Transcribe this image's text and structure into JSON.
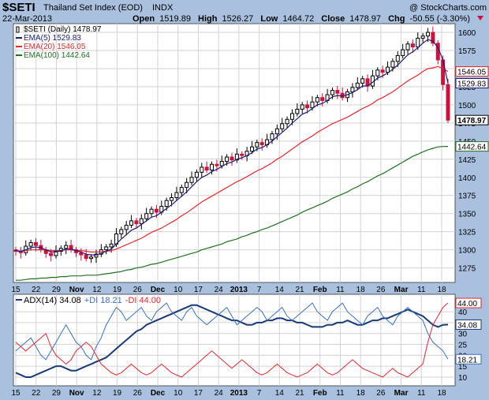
{
  "header": {
    "symbol": "$SETI",
    "name": "Thailand Set Index (EOD)",
    "exchange": "INDX",
    "watermark": "@ StockCharts.com",
    "date": "22-Mar-2013",
    "open_label": "Open",
    "open": "1519.89",
    "high_label": "High",
    "high": "1526.27",
    "low_label": "Low",
    "low": "1464.72",
    "close_label": "Close",
    "close": "1478.97",
    "chg_label": "Chg",
    "chg": "-50.55 (-3.30%)"
  },
  "colors": {
    "background": "#a9c0de",
    "plot_bg": "#ffffff",
    "grid": "#d3d3d3",
    "up": "#000000",
    "down": "#d0103a",
    "ema5": "#1c1c7a",
    "ema20": "#e8262c",
    "ema100": "#237023",
    "adx": "#1a3a78",
    "plus_di": "#3b6fc4",
    "minus_di": "#e8262c"
  },
  "chart_data": [
    {
      "type": "candlestick",
      "title": "$SETI Thailand Set Index (EOD) INDX",
      "legend": [
        {
          "key": "price",
          "text": "$SETI (Daily) 1478.97"
        },
        {
          "key": "ema5",
          "text": "EMA(5) 1529.83"
        },
        {
          "key": "ema20",
          "text": "EMA(20) 1546.05"
        },
        {
          "key": "ema100",
          "text": "EMA(100) 1442.64"
        }
      ],
      "legend_position": "top-left",
      "y_ticks": [
        1275,
        1300,
        1325,
        1350,
        1375,
        1400,
        1425,
        1450,
        1475,
        1500,
        1525,
        1550,
        1575,
        1600
      ],
      "y_range": [
        1255,
        1612
      ],
      "x_ticks": [
        "15",
        "22",
        "29",
        "Nov",
        "12",
        "19",
        "26",
        "Dec",
        "10",
        "17",
        "24",
        "2013",
        "7",
        "14",
        "21",
        "Feb",
        "11",
        "18",
        "26",
        "Mar",
        "11",
        "18"
      ],
      "series_points": {
        "close": [
          1298,
          1296,
          1305,
          1310,
          1306,
          1300,
          1295,
          1292,
          1298,
          1302,
          1306,
          1300,
          1296,
          1293,
          1288,
          1290,
          1294,
          1300,
          1304,
          1308,
          1322,
          1328,
          1334,
          1340,
          1336,
          1343,
          1350,
          1356,
          1352,
          1360,
          1368,
          1372,
          1379,
          1386,
          1393,
          1400,
          1407,
          1414,
          1410,
          1418,
          1416,
          1422,
          1428,
          1424,
          1432,
          1430,
          1436,
          1442,
          1448,
          1445,
          1452,
          1460,
          1467,
          1474,
          1480,
          1488,
          1494,
          1500,
          1496,
          1504,
          1510,
          1506,
          1514,
          1520,
          1516,
          1510,
          1518,
          1524,
          1530,
          1536,
          1526,
          1540,
          1548,
          1545,
          1552,
          1560,
          1568,
          1576,
          1584,
          1580,
          1592,
          1595,
          1600,
          1585,
          1562,
          1528,
          1478.97
        ],
        "ema5": [
          1299,
          1298,
          1300,
          1303,
          1304,
          1303,
          1300,
          1297,
          1297,
          1299,
          1301,
          1301,
          1299,
          1297,
          1294,
          1293,
          1293,
          1295,
          1298,
          1301,
          1308,
          1315,
          1321,
          1327,
          1330,
          1335,
          1340,
          1345,
          1347,
          1352,
          1357,
          1362,
          1368,
          1374,
          1380,
          1387,
          1394,
          1400,
          1403,
          1408,
          1411,
          1415,
          1419,
          1421,
          1425,
          1427,
          1430,
          1434,
          1439,
          1441,
          1445,
          1450,
          1456,
          1462,
          1468,
          1475,
          1481,
          1487,
          1490,
          1495,
          1500,
          1502,
          1506,
          1511,
          1513,
          1512,
          1514,
          1517,
          1521,
          1526,
          1526,
          1531,
          1537,
          1540,
          1544,
          1549,
          1555,
          1562,
          1569,
          1573,
          1579,
          1585,
          1590,
          1588,
          1579,
          1562,
          1529.83
        ],
        "ema20": [
          1298,
          1298,
          1299,
          1300,
          1300,
          1300,
          1300,
          1299,
          1299,
          1299,
          1300,
          1300,
          1299,
          1299,
          1298,
          1297,
          1297,
          1297,
          1298,
          1299,
          1301,
          1304,
          1307,
          1310,
          1313,
          1316,
          1320,
          1324,
          1327,
          1330,
          1334,
          1338,
          1342,
          1347,
          1351,
          1356,
          1361,
          1366,
          1370,
          1374,
          1378,
          1382,
          1386,
          1390,
          1394,
          1397,
          1401,
          1405,
          1409,
          1412,
          1416,
          1420,
          1425,
          1429,
          1434,
          1439,
          1444,
          1449,
          1453,
          1457,
          1462,
          1466,
          1470,
          1474,
          1477,
          1480,
          1483,
          1487,
          1491,
          1495,
          1498,
          1502,
          1507,
          1510,
          1514,
          1518,
          1523,
          1528,
          1533,
          1537,
          1541,
          1546,
          1550,
          1551,
          1553,
          1550,
          1546.05
        ],
        "ema100": [
          1258,
          1258,
          1259,
          1260,
          1260,
          1261,
          1261,
          1262,
          1262,
          1263,
          1263,
          1264,
          1264,
          1264,
          1265,
          1265,
          1265,
          1266,
          1267,
          1268,
          1269,
          1270,
          1272,
          1273,
          1275,
          1276,
          1278,
          1280,
          1281,
          1283,
          1285,
          1287,
          1289,
          1291,
          1293,
          1295,
          1297,
          1300,
          1302,
          1304,
          1306,
          1308,
          1311,
          1313,
          1315,
          1318,
          1320,
          1323,
          1325,
          1328,
          1330,
          1333,
          1336,
          1339,
          1342,
          1345,
          1348,
          1352,
          1355,
          1358,
          1361,
          1364,
          1367,
          1371,
          1374,
          1377,
          1380,
          1384,
          1387,
          1391,
          1394,
          1398,
          1402,
          1405,
          1409,
          1413,
          1417,
          1421,
          1425,
          1429,
          1432,
          1435,
          1438,
          1440,
          1442,
          1442.5,
          1442.64
        ]
      }
    },
    {
      "type": "line",
      "title": "ADX(14) 34.08 +DI 18.21 -DI 44.00",
      "legend": [
        {
          "key": "adx",
          "text": "ADX(14) 34.08"
        },
        {
          "key": "plus_di",
          "text": "+DI 18.21"
        },
        {
          "key": "minus_di",
          "text": "-DI 44.00"
        }
      ],
      "y_ticks": [
        10,
        15,
        20,
        25,
        30,
        35,
        40
      ],
      "y_range": [
        6,
        48
      ],
      "series": [
        {
          "name": "ADX(14)",
          "last": "34.08",
          "values": [
            12,
            11,
            10,
            10,
            11,
            12,
            13,
            14,
            15,
            15,
            14,
            13,
            13,
            14,
            15,
            16,
            17,
            18,
            19,
            21,
            23,
            25,
            27,
            29,
            31,
            32,
            34,
            35,
            36,
            37,
            38,
            39,
            40,
            41,
            42,
            43,
            43,
            42,
            41,
            40,
            39,
            38,
            37,
            36,
            36,
            35,
            34,
            34,
            35,
            35,
            36,
            36,
            37,
            37,
            36,
            36,
            35,
            35,
            34,
            33,
            33,
            33,
            34,
            34,
            35,
            35,
            36,
            35,
            34,
            34,
            35,
            36,
            36,
            37,
            37,
            38,
            39,
            40,
            41,
            40,
            39,
            38,
            36,
            34,
            33,
            34,
            34.08
          ]
        },
        {
          "name": "+DI",
          "last": "18.21",
          "values": [
            22,
            24,
            26,
            28,
            24,
            20,
            18,
            22,
            26,
            30,
            34,
            30,
            26,
            24,
            20,
            18,
            24,
            28,
            34,
            38,
            42,
            40,
            36,
            38,
            40,
            42,
            38,
            36,
            40,
            42,
            44,
            40,
            38,
            36,
            40,
            42,
            38,
            36,
            34,
            36,
            38,
            40,
            42,
            38,
            34,
            36,
            38,
            40,
            42,
            40,
            36,
            38,
            40,
            42,
            38,
            36,
            38,
            40,
            42,
            44,
            40,
            38,
            36,
            40,
            42,
            44,
            40,
            38,
            36,
            34,
            38,
            40,
            42,
            38,
            36,
            34,
            38,
            40,
            42,
            40,
            38,
            36,
            30,
            26,
            24,
            22,
            18.21
          ]
        },
        {
          "name": "-DI",
          "last": "44.00",
          "values": [
            26,
            24,
            22,
            24,
            26,
            28,
            30,
            24,
            20,
            18,
            16,
            18,
            22,
            24,
            26,
            24,
            20,
            16,
            14,
            12,
            11,
            12,
            14,
            16,
            14,
            12,
            11,
            12,
            14,
            16,
            14,
            12,
            11,
            10,
            12,
            14,
            16,
            18,
            20,
            22,
            20,
            18,
            16,
            14,
            16,
            18,
            16,
            14,
            12,
            11,
            12,
            14,
            16,
            14,
            12,
            11,
            10,
            11,
            12,
            14,
            16,
            14,
            12,
            11,
            12,
            14,
            16,
            18,
            16,
            14,
            13,
            12,
            11,
            10,
            12,
            14,
            12,
            11,
            10,
            12,
            14,
            16,
            26,
            34,
            38,
            42,
            44.0
          ]
        }
      ],
      "x_ticks": [
        "15",
        "22",
        "29",
        "Nov",
        "12",
        "19",
        "26",
        "Dec",
        "10",
        "17",
        "24",
        "2013",
        "7",
        "14",
        "21",
        "Feb",
        "11",
        "18",
        "26",
        "Mar",
        "11",
        "18"
      ]
    }
  ]
}
